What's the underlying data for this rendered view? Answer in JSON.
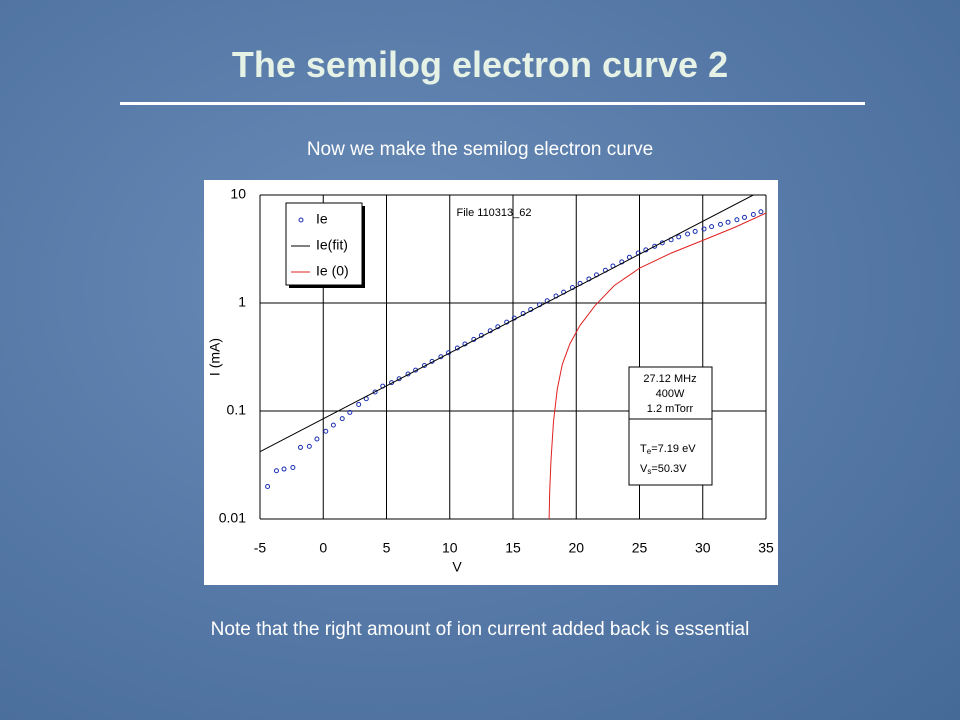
{
  "title": "The semilog electron curve 2",
  "subtitle": "Now we make the semilog electron curve",
  "note": "Note that the right amount of ion current added back is essential",
  "chart_data": {
    "type": "line",
    "xlabel": "V",
    "ylabel": "I (mA)",
    "xlim": [
      -5,
      35
    ],
    "xticks": [
      -5,
      0,
      5,
      10,
      15,
      20,
      25,
      30,
      35
    ],
    "ylim": [
      0.01,
      10
    ],
    "yticks": [
      0.01,
      0.1,
      1,
      10
    ],
    "ylog": true,
    "grid": true,
    "legend": "upper left",
    "annotations": [
      "File 110313_62",
      "27.12 MHz",
      "400W",
      "1.2 mTorr"
    ],
    "fit_results": [
      [
        "T",
        "e",
        "=7.19 eV"
      ],
      [
        "V",
        "s",
        "=50.3V"
      ]
    ],
    "series": [
      {
        "name": "Ie",
        "color": "#1a2fb0",
        "style": "markers",
        "x": [
          -4.4,
          -3.7,
          -3.1,
          -2.4,
          -1.8,
          -1.1,
          -0.5,
          0.2,
          0.8,
          1.5,
          2.1,
          2.8,
          3.4,
          4.1,
          4.7,
          5.4,
          6.0,
          6.7,
          7.3,
          8.0,
          8.6,
          9.3,
          9.9,
          10.6,
          11.2,
          11.9,
          12.5,
          13.2,
          13.8,
          14.5,
          15.1,
          15.8,
          16.4,
          17.1,
          17.7,
          18.4,
          19.0,
          19.7,
          20.3,
          21.0,
          21.6,
          22.3,
          22.9,
          23.6,
          24.2,
          24.9,
          25.5,
          26.2,
          26.8,
          27.5,
          28.1,
          28.8,
          29.4,
          30.1,
          30.7,
          31.4,
          32.0,
          32.7,
          33.3,
          34.0,
          34.6
        ],
        "values": [
          0.02,
          0.028,
          0.029,
          0.03,
          0.046,
          0.047,
          0.055,
          0.065,
          0.074,
          0.085,
          0.097,
          0.115,
          0.13,
          0.15,
          0.17,
          0.183,
          0.199,
          0.22,
          0.239,
          0.264,
          0.288,
          0.318,
          0.346,
          0.383,
          0.417,
          0.46,
          0.501,
          0.553,
          0.603,
          0.665,
          0.724,
          0.8,
          0.871,
          0.964,
          1.05,
          1.16,
          1.26,
          1.39,
          1.52,
          1.67,
          1.82,
          2.01,
          2.2,
          2.4,
          2.65,
          2.9,
          3.1,
          3.35,
          3.6,
          3.85,
          4.1,
          4.35,
          4.6,
          4.85,
          5.1,
          5.35,
          5.6,
          5.9,
          6.2,
          6.6,
          7.0
        ]
      },
      {
        "name": "Ie(fit)",
        "color": "#000000",
        "style": "line",
        "x": [
          -5,
          34
        ],
        "values": [
          0.042,
          10
        ]
      },
      {
        "name": "Ie (0)",
        "color": "#e02020",
        "style": "line",
        "x": [
          17.85,
          17.9,
          18.0,
          18.2,
          18.5,
          18.9,
          19.5,
          20.3,
          21.5,
          23,
          25,
          27.5,
          30,
          32.5,
          35
        ],
        "values": [
          0.01,
          0.018,
          0.035,
          0.08,
          0.16,
          0.27,
          0.42,
          0.62,
          0.95,
          1.45,
          2.1,
          2.9,
          3.8,
          5.0,
          6.8
        ]
      }
    ]
  }
}
